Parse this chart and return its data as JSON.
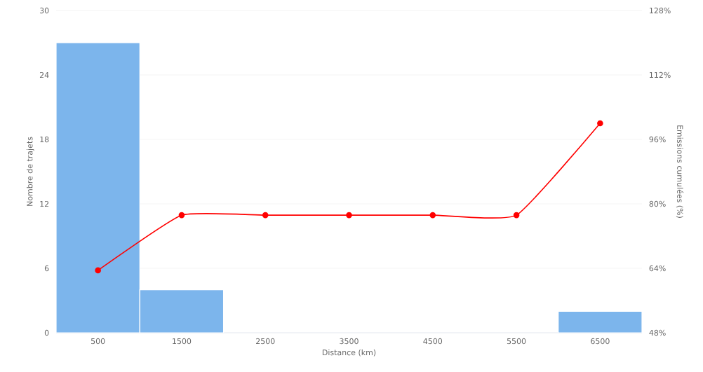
{
  "chart_data": {
    "type": "histogram",
    "xlabel": "Distance (km)",
    "ylabel": "Nombre de trajets",
    "y2label": "Emissions cumulées (%)",
    "bins": [
      0,
      1000,
      2000,
      3000,
      4000,
      5000,
      6000,
      7000
    ],
    "series": [
      {
        "color": "#7cb5ec",
        "values": [
          27,
          4,
          0,
          0,
          0,
          0,
          2
        ]
      },
      {
        "type": "line",
        "axis": "y2",
        "color": "#ff0000",
        "x": [
          500,
          1500,
          2500,
          3500,
          4500,
          5500,
          6500
        ],
        "values": [
          63.5,
          77.2,
          77.2,
          77.2,
          77.2,
          77.2,
          100
        ]
      }
    ],
    "xlim": [
      0,
      7000
    ],
    "xticks": [
      500,
      1500,
      2500,
      3500,
      4500,
      5500,
      6500
    ],
    "ylim": [
      0,
      30
    ],
    "yticks": [
      0,
      6,
      12,
      18,
      24,
      30
    ],
    "y2lim": [
      48,
      128
    ],
    "y2ticks": [
      {
        "value": 48,
        "label": "48%"
      },
      {
        "value": 64,
        "label": "64%"
      },
      {
        "value": 80,
        "label": "80%"
      },
      {
        "value": 96,
        "label": "96%"
      },
      {
        "value": 112,
        "label": "112%"
      },
      {
        "value": 128,
        "label": "128%"
      }
    ],
    "grid": "y",
    "marker": "circle",
    "line_style": "solid"
  }
}
